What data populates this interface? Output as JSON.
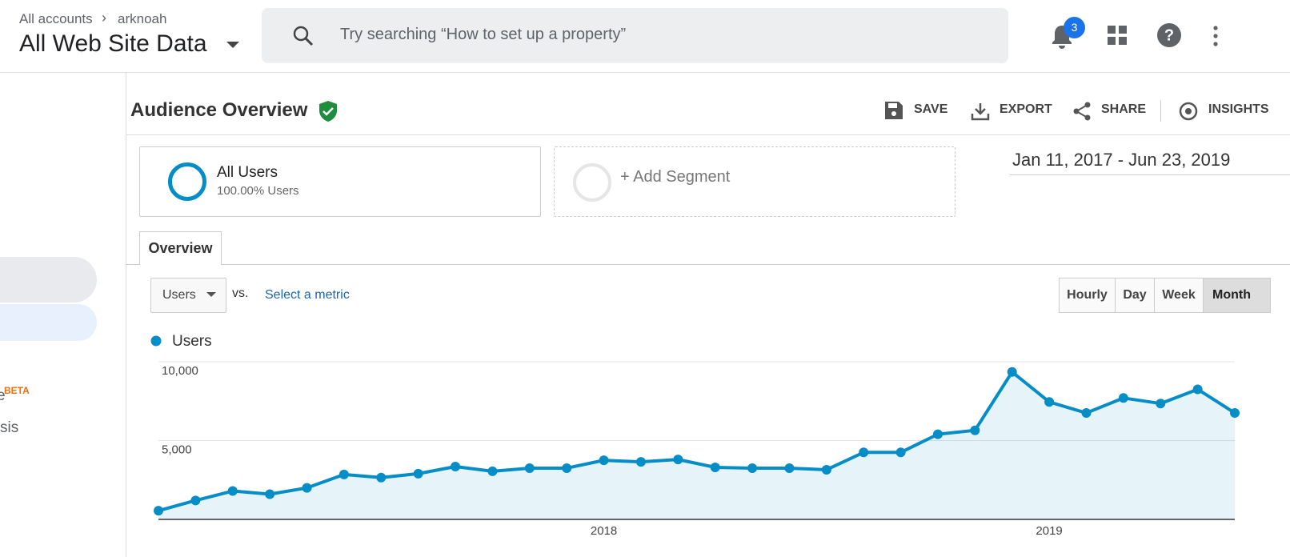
{
  "header": {
    "breadcrumb": [
      "All accounts",
      "arknoah"
    ],
    "view": "All Web Site Data",
    "search_placeholder": "Try searching “How to set up a property”",
    "notification_count": "3"
  },
  "sidebar": {
    "items": [
      "e",
      "BETA",
      "sis"
    ]
  },
  "toolbar": {
    "title": "Audience Overview",
    "actions": [
      "SAVE",
      "EXPORT",
      "SHARE",
      "INSIGHTS"
    ]
  },
  "segments": [
    {
      "name": "All Users",
      "detail": "100.00% Users"
    },
    {
      "name": "+ Add Segment"
    }
  ],
  "date_range": "Jan 11, 2017 - Jun 23, 2019",
  "tabs": [
    "Overview"
  ],
  "metric": {
    "primary": "Users",
    "vs": "vs.",
    "secondary": "Select a metric"
  },
  "granularity": [
    "Hourly",
    "Day",
    "Week",
    "Month"
  ],
  "chart_data": {
    "type": "line",
    "color": "#058dc7",
    "series": [
      {
        "name": "Users",
        "color": "#058dc7",
        "values": [
          550,
          1200,
          1800,
          1600,
          2000,
          2850,
          2650,
          2900,
          3350,
          3050,
          3250,
          3250,
          3750,
          3650,
          3800,
          3300,
          3250,
          3250,
          3150,
          4250,
          4250,
          5400,
          5650,
          9350,
          7450,
          6750,
          7700,
          7350,
          8250,
          6750
        ]
      }
    ],
    "categories": [
      null,
      null,
      null,
      null,
      null,
      null,
      null,
      null,
      null,
      null,
      null,
      null,
      "2018",
      null,
      null,
      null,
      null,
      null,
      null,
      null,
      null,
      null,
      null,
      null,
      "2019",
      null,
      null,
      null,
      null,
      null
    ],
    "ylim": [
      0,
      10000
    ],
    "yticks": [
      {
        "value": 5000,
        "label": "5,000"
      },
      {
        "value": 10000,
        "label": "10,000"
      }
    ],
    "grid": true
  }
}
